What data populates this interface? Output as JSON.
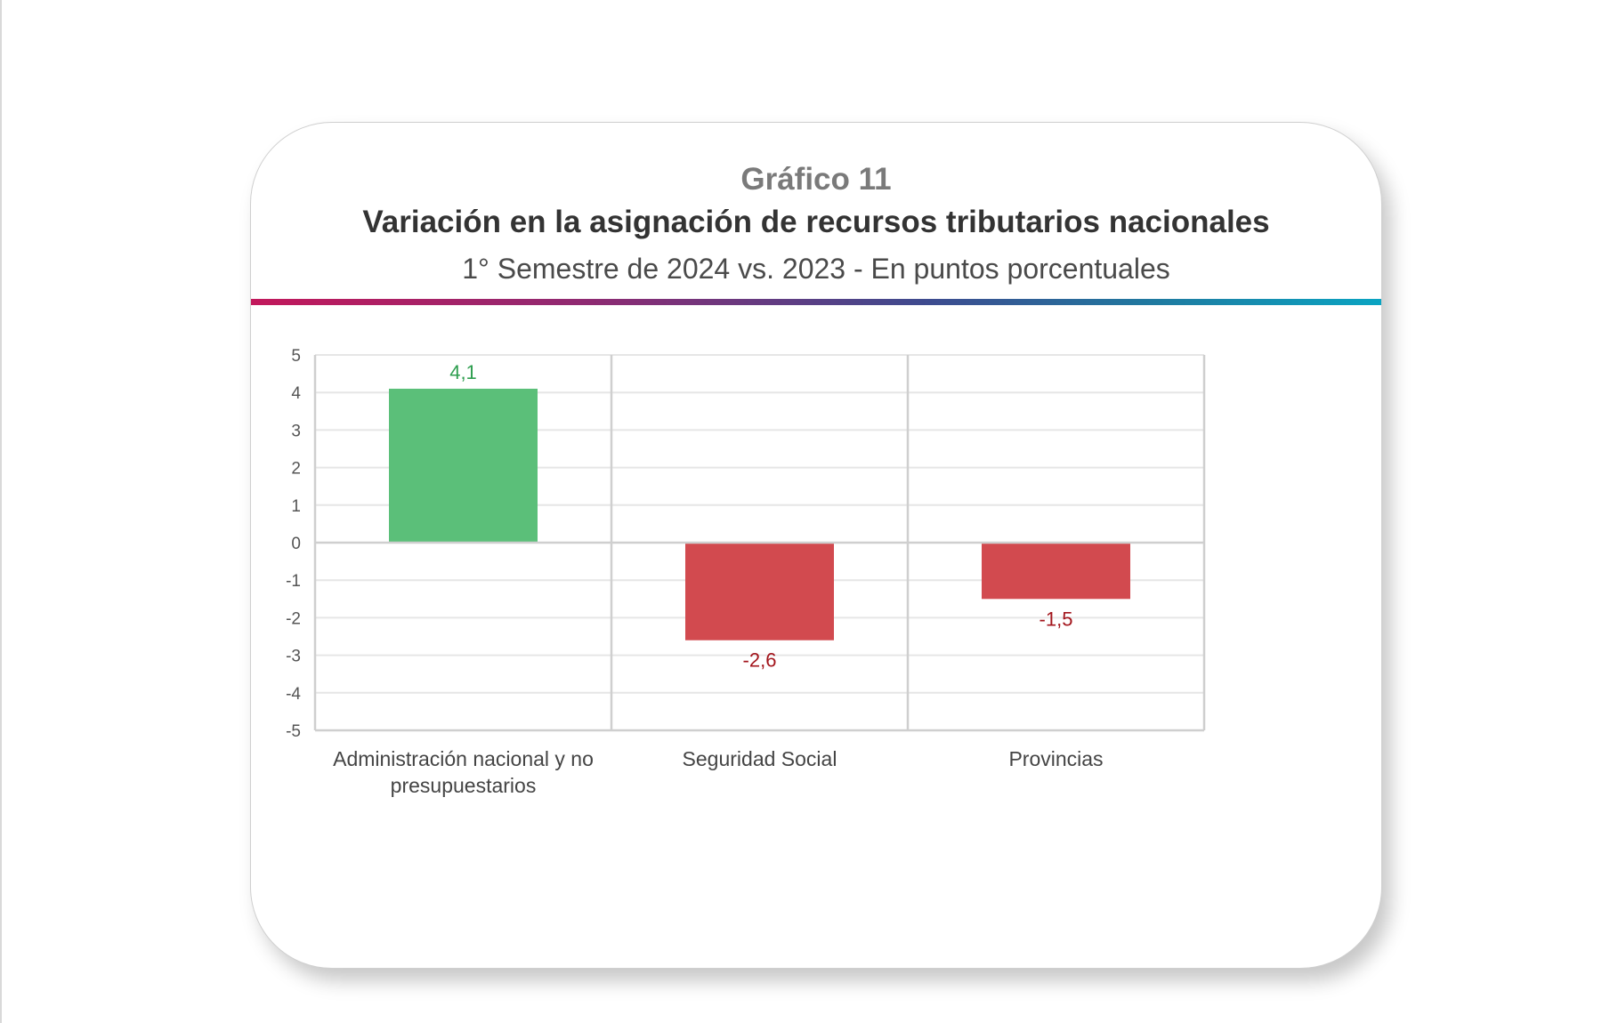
{
  "header": {
    "kicker": "Gráfico 11",
    "title": "Variación en la asignación de recursos tributarios nacionales",
    "subtitle": "1° Semestre de 2024 vs. 2023 - En puntos porcentuales"
  },
  "colors": {
    "positive": "#5bbf79",
    "negative": "#d24a4f",
    "positive_label": "#2e9e4f",
    "negative_label": "#a3151c",
    "grid": "#e6e6e6",
    "axis": "#cfcfcf",
    "tick_text": "#555555",
    "category_text": "#444444"
  },
  "chart_data": {
    "type": "bar",
    "categories": [
      [
        "Administración nacional y no",
        "presupuestarios"
      ],
      [
        "Seguridad Social"
      ],
      [
        "Provincias"
      ]
    ],
    "values": [
      4.1,
      -2.6,
      -1.5
    ],
    "value_labels": [
      "4,1",
      "-2,6",
      "-1,5"
    ],
    "ylim": [
      -5,
      5
    ],
    "yticks": [
      5,
      4,
      3,
      2,
      1,
      0,
      -1,
      -2,
      -3,
      -4,
      -5
    ],
    "ytick_labels": [
      "5",
      "4",
      "3",
      "2",
      "1",
      "0",
      "-1",
      "-2",
      "-3",
      "-4",
      "-5"
    ],
    "grid": true,
    "legend": "none"
  }
}
